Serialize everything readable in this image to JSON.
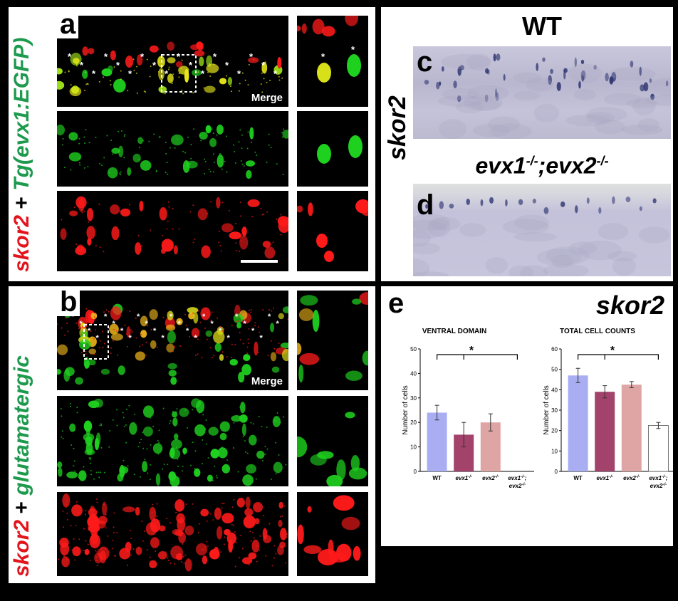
{
  "panels": {
    "a": {
      "letter": "a",
      "merge": "Merge",
      "label_red": "skor2",
      "label_plus": " + ",
      "label_green": "Tg(evx1:EGFP)"
    },
    "b": {
      "letter": "b",
      "merge": "Merge",
      "label_red": "skor2",
      "label_plus": " + ",
      "label_green": "glutamatergic"
    },
    "c": {
      "letter": "c",
      "header": "WT"
    },
    "d": {
      "letter": "d",
      "header_pre": "evx1",
      "header_sup1": "-/-",
      "header_mid": ";evx2",
      "header_sup2": "-/-"
    },
    "side_label": "skor2",
    "e": {
      "letter": "e",
      "gene": "skor2"
    }
  },
  "colors": {
    "wt": "#a9aef2",
    "evx1": "#a3426b",
    "evx2": "#dfa5a5",
    "double": "#ffffff",
    "red_channel": "#ff1a1a",
    "green_channel": "#1fd11f",
    "label_red": "#e2141c",
    "label_green": "#1d9a4d"
  },
  "chart_data": [
    {
      "type": "bar",
      "title": "VENTRAL DOMAIN",
      "ylabel": "Number of cells",
      "ylim": [
        0,
        50
      ],
      "yticks": [
        "0",
        "10",
        "20",
        "30",
        "40",
        "50"
      ],
      "categories": [
        {
          "base": "WT",
          "sup": "",
          "tail": ""
        },
        {
          "base": "evx1",
          "sup": "-/-",
          "tail": ""
        },
        {
          "base": "evx2",
          "sup": "-/-",
          "tail": ""
        },
        {
          "base": "evx1",
          "sup": "-/-",
          "tail": ";",
          "line2": "evx2",
          "sup2": "-/-"
        }
      ],
      "values": [
        24,
        15,
        20,
        0
      ],
      "errors": [
        3,
        5,
        3.5,
        0
      ],
      "significance": "*"
    },
    {
      "type": "bar",
      "title": "TOTAL CELL COUNTS",
      "ylabel": "Number of cells",
      "ylim": [
        0,
        60
      ],
      "yticks": [
        "0",
        "10",
        "20",
        "30",
        "40",
        "50",
        "60"
      ],
      "categories": [
        {
          "base": "WT",
          "sup": "",
          "tail": ""
        },
        {
          "base": "evx1",
          "sup": "-/-",
          "tail": ""
        },
        {
          "base": "evx2",
          "sup": "-/-",
          "tail": ""
        },
        {
          "base": "evx1",
          "sup": "-/-",
          "tail": ";",
          "line2": "evx2",
          "sup2": "-/-"
        }
      ],
      "values": [
        47,
        39,
        42.5,
        22.5
      ],
      "errors": [
        3.5,
        3,
        1.5,
        1.5
      ],
      "significance": "*"
    }
  ]
}
